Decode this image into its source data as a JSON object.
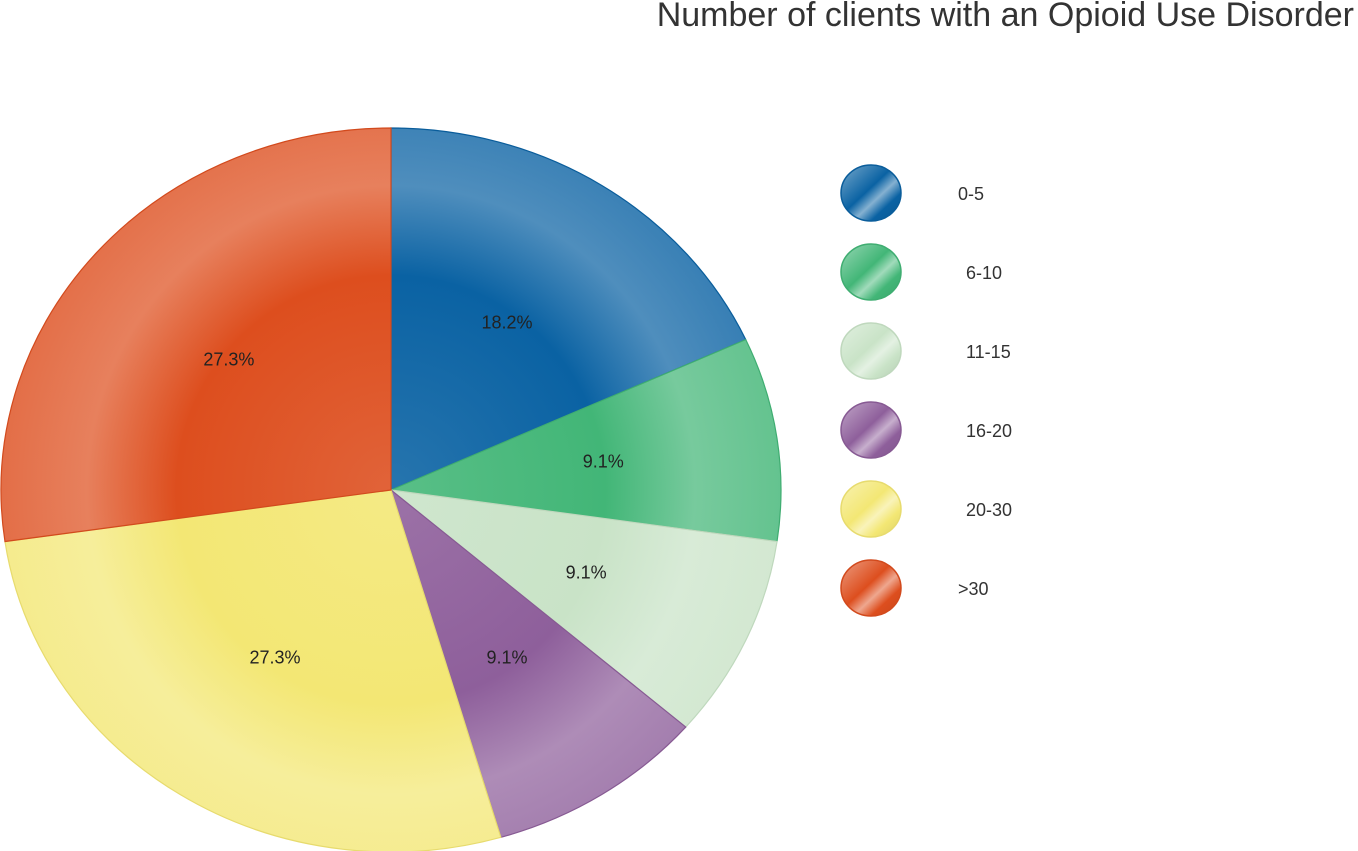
{
  "chart_data": {
    "type": "pie",
    "title": "Number of clients with an Opioid Use Disorder",
    "legend_position": "right",
    "slices": [
      {
        "label": "0-5",
        "value": 18.2,
        "display": "18.2%",
        "color": "#0a62a3"
      },
      {
        "label": "6-10",
        "value": 9.1,
        "display": "9.1%",
        "color": "#42b677"
      },
      {
        "label": "11-15",
        "value": 9.1,
        "display": "9.1%",
        "color": "#c9e3c7"
      },
      {
        "label": "16-20",
        "value": 9.1,
        "display": "9.1%",
        "color": "#8e5f9b"
      },
      {
        "label": "20-30",
        "value": 27.3,
        "display": "27.3%",
        "color": "#f3e774"
      },
      {
        "label": ">30",
        "value": 27.3,
        "display": "27.3%",
        "color": "#dd4e1e"
      }
    ]
  }
}
